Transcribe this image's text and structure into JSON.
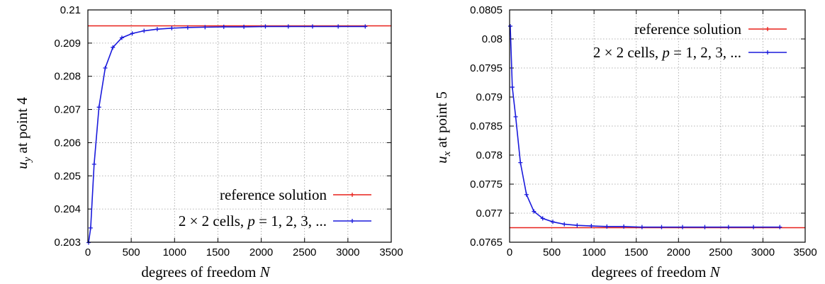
{
  "chart_data": [
    {
      "type": "line",
      "xlabel_text": "degrees of freedom ",
      "xlabel_var": "N",
      "ylabel_var": "u",
      "ylabel_sub": "y",
      "ylabel_text": " at point 4",
      "xlim": [
        0,
        3500
      ],
      "ylim": [
        0.203,
        0.21
      ],
      "xticks": [
        0,
        500,
        1000,
        1500,
        2000,
        2500,
        3000,
        3500
      ],
      "xtick_labels": [
        "0",
        "500",
        "1000",
        "1500",
        "2000",
        "2500",
        "3000",
        "3500"
      ],
      "yticks": [
        0.203,
        0.204,
        0.205,
        0.206,
        0.207,
        0.208,
        0.209,
        0.21
      ],
      "ytick_labels": [
        "0.203",
        "0.204",
        "0.205",
        "0.206",
        "0.207",
        "0.208",
        "0.209",
        "0.21"
      ],
      "grid": true,
      "legend_position": "bottom-right",
      "reference": {
        "name": "reference solution",
        "value": 0.20952,
        "color": "#e8201a"
      },
      "series": [
        {
          "name_a": "2 × 2 cells, ",
          "name_b": "p",
          "name_c": " = 1, 2, 3, ...",
          "color": "#1a1adc",
          "x": [
            8,
            32,
            72,
            128,
            200,
            288,
            392,
            512,
            648,
            800,
            968,
            1152,
            1352,
            1568,
            1800,
            2048,
            2312,
            2592,
            2888,
            3200
          ],
          "y": [
            0.20299,
            0.20343,
            0.20535,
            0.20707,
            0.20825,
            0.20887,
            0.20916,
            0.20929,
            0.20937,
            0.20942,
            0.20945,
            0.20947,
            0.20948,
            0.20949,
            0.20949,
            0.2095,
            0.2095,
            0.2095,
            0.2095,
            0.2095
          ]
        }
      ]
    },
    {
      "type": "line",
      "xlabel_text": "degrees of freedom ",
      "xlabel_var": "N",
      "ylabel_var": "u",
      "ylabel_sub": "x",
      "ylabel_text": " at point 5",
      "xlim": [
        0,
        3500
      ],
      "ylim": [
        0.0765,
        0.0805
      ],
      "xticks": [
        0,
        500,
        1000,
        1500,
        2000,
        2500,
        3000,
        3500
      ],
      "xtick_labels": [
        "0",
        "500",
        "1000",
        "1500",
        "2000",
        "2500",
        "3000",
        "3500"
      ],
      "yticks": [
        0.0765,
        0.077,
        0.0775,
        0.078,
        0.0785,
        0.079,
        0.0795,
        0.08,
        0.0805
      ],
      "ytick_labels": [
        "0.0765",
        "0.077",
        "0.0775",
        "0.078",
        "0.0785",
        "0.079",
        "0.0795",
        "0.08",
        "0.0805"
      ],
      "grid": true,
      "legend_position": "top-right",
      "reference": {
        "name": "reference solution",
        "value": 0.07675,
        "color": "#e8201a"
      },
      "series": [
        {
          "name_a": "2 × 2 cells, ",
          "name_b": "p",
          "name_c": " = 1, 2, 3, ...",
          "color": "#1a1adc",
          "x": [
            8,
            32,
            72,
            128,
            200,
            288,
            392,
            512,
            648,
            800,
            968,
            1152,
            1352,
            1568,
            1800,
            2048,
            2312,
            2592,
            2888,
            3200
          ],
          "y": [
            0.08022,
            0.07917,
            0.07866,
            0.07787,
            0.07732,
            0.07703,
            0.07691,
            0.07685,
            0.07681,
            0.07679,
            0.07678,
            0.07677,
            0.07677,
            0.07676,
            0.07676,
            0.07676,
            0.07676,
            0.07676,
            0.07676,
            0.07676
          ]
        }
      ]
    }
  ]
}
